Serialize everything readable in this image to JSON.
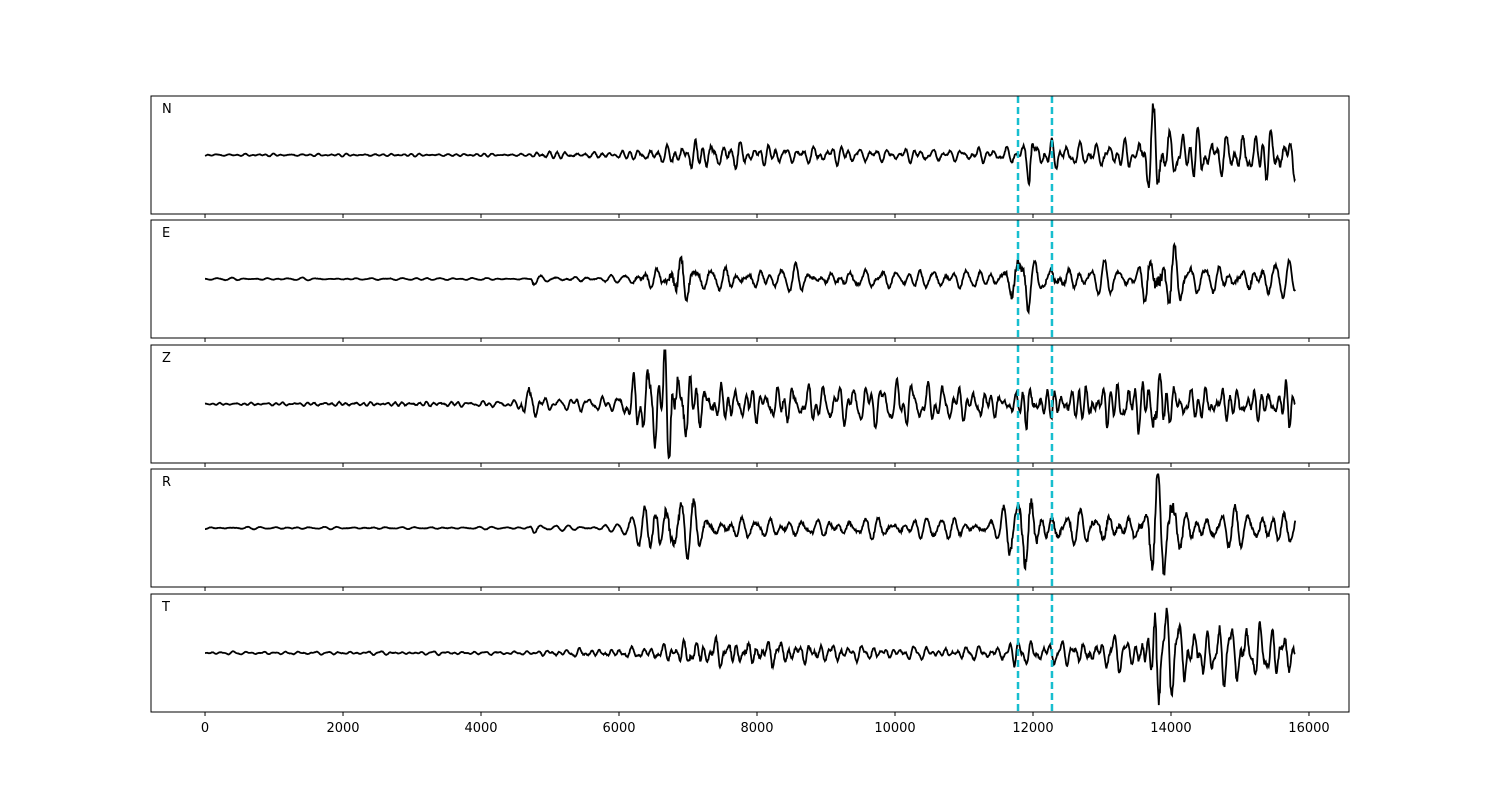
{
  "chart_data": {
    "type": "line",
    "title": "",
    "xlabel": "",
    "ylabel": "",
    "xlim": [
      -783,
      16580
    ],
    "ylim": [
      -1.1,
      1.1
    ],
    "x_ticks": [
      0,
      2000,
      4000,
      6000,
      8000,
      10000,
      12000,
      14000,
      16000
    ],
    "x_tick_labels": [
      "0",
      "2000",
      "4000",
      "6000",
      "8000",
      "10000",
      "12000",
      "14000",
      "16000"
    ],
    "x_range_of_data": [
      0,
      15800
    ],
    "y_ticks_shown": false,
    "grid": false,
    "line_color": "#000000",
    "marker_color": "#17becf",
    "vertical_markers": [
      11783,
      12275
    ],
    "panels": [
      {
        "label": "N",
        "envelope": [
          [
            0,
            0.02
          ],
          [
            4700,
            0.03
          ],
          [
            4800,
            0.07
          ],
          [
            6000,
            0.06
          ],
          [
            6500,
            0.15
          ],
          [
            7000,
            0.22
          ],
          [
            7700,
            0.27
          ],
          [
            8000,
            0.15
          ],
          [
            9000,
            0.15
          ],
          [
            10000,
            0.1
          ],
          [
            11500,
            0.1
          ],
          [
            11900,
            0.2
          ],
          [
            11950,
            0.6
          ],
          [
            12050,
            0.2
          ],
          [
            13500,
            0.2
          ],
          [
            13800,
            1.0
          ],
          [
            13900,
            0.45
          ],
          [
            14500,
            0.35
          ],
          [
            15800,
            0.4
          ]
        ]
      },
      {
        "label": "E",
        "envelope": [
          [
            0,
            0.02
          ],
          [
            4700,
            0.02
          ],
          [
            4750,
            0.15
          ],
          [
            4850,
            0.05
          ],
          [
            6000,
            0.05
          ],
          [
            6500,
            0.2
          ],
          [
            6700,
            0.6
          ],
          [
            6900,
            0.55
          ],
          [
            7200,
            0.2
          ],
          [
            8000,
            0.2
          ],
          [
            11500,
            0.15
          ],
          [
            11900,
            0.8
          ],
          [
            12000,
            0.3
          ],
          [
            13500,
            0.2
          ],
          [
            13800,
            0.9
          ],
          [
            14000,
            0.7
          ],
          [
            14200,
            0.3
          ],
          [
            15800,
            0.25
          ]
        ]
      },
      {
        "label": "Z",
        "envelope": [
          [
            0,
            0.02
          ],
          [
            3200,
            0.05
          ],
          [
            4500,
            0.05
          ],
          [
            4700,
            0.3
          ],
          [
            4900,
            0.08
          ],
          [
            6000,
            0.1
          ],
          [
            6700,
            1.0
          ],
          [
            6900,
            0.7
          ],
          [
            7200,
            0.35
          ],
          [
            9000,
            0.25
          ],
          [
            10000,
            0.3
          ],
          [
            11800,
            0.2
          ],
          [
            11900,
            0.6
          ],
          [
            12000,
            0.3
          ],
          [
            13700,
            0.5
          ],
          [
            13800,
            0.85
          ],
          [
            14000,
            0.3
          ],
          [
            15600,
            0.3
          ],
          [
            15700,
            0.6
          ],
          [
            15800,
            0.1
          ]
        ]
      },
      {
        "label": "R",
        "envelope": [
          [
            0,
            0.02
          ],
          [
            4700,
            0.02
          ],
          [
            4750,
            0.1
          ],
          [
            4900,
            0.03
          ],
          [
            6000,
            0.05
          ],
          [
            6700,
            0.6
          ],
          [
            6900,
            0.5
          ],
          [
            7300,
            0.2
          ],
          [
            11500,
            0.15
          ],
          [
            11900,
            0.9
          ],
          [
            12000,
            0.5
          ],
          [
            12200,
            0.3
          ],
          [
            13600,
            0.3
          ],
          [
            13800,
            1.0
          ],
          [
            14000,
            0.8
          ],
          [
            14200,
            0.3
          ],
          [
            15800,
            0.25
          ]
        ]
      },
      {
        "label": "T",
        "envelope": [
          [
            0,
            0.02
          ],
          [
            4700,
            0.03
          ],
          [
            4800,
            0.05
          ],
          [
            6400,
            0.1
          ],
          [
            7000,
            0.25
          ],
          [
            7700,
            0.25
          ],
          [
            8500,
            0.2
          ],
          [
            10000,
            0.1
          ],
          [
            11500,
            0.1
          ],
          [
            11800,
            0.3
          ],
          [
            12000,
            0.15
          ],
          [
            13500,
            0.25
          ],
          [
            13800,
            1.0
          ],
          [
            14000,
            0.5
          ],
          [
            14500,
            0.45
          ],
          [
            15500,
            0.4
          ],
          [
            15800,
            0.3
          ]
        ]
      }
    ]
  }
}
